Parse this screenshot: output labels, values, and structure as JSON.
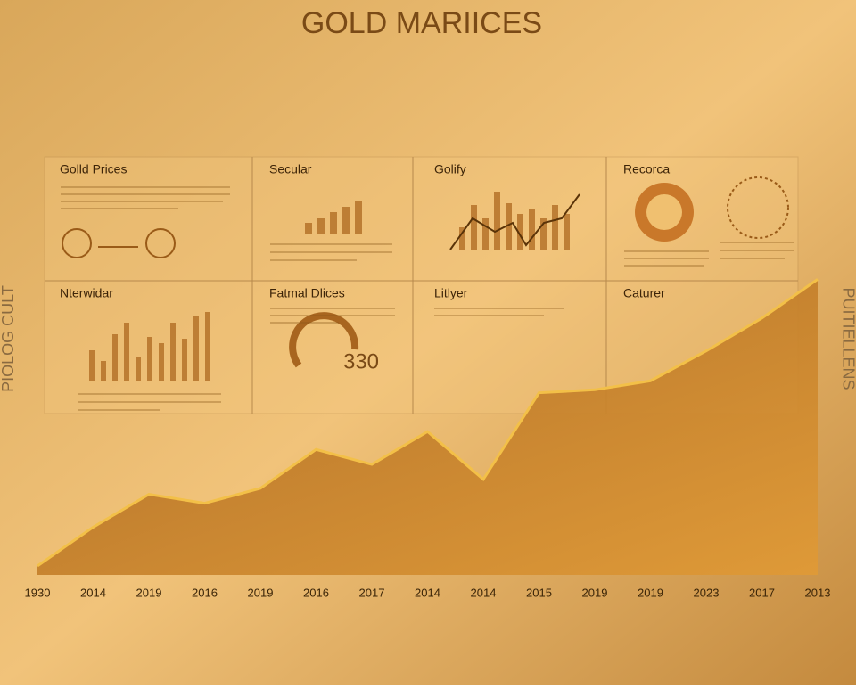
{
  "header": {
    "title": "GOLD MARIICES"
  },
  "panels": [
    {
      "title": "Golld Prices"
    },
    {
      "title": "Secular"
    },
    {
      "title": "Golify"
    },
    {
      "title": "Recorca"
    },
    {
      "title": "Nterwidar"
    },
    {
      "title": "Fatmal Dlices",
      "figure": "330"
    },
    {
      "title": "Litlyer"
    },
    {
      "title": "Caturer"
    }
  ],
  "side": {
    "left": "PIOLOG CULT",
    "right": "PUITIELLENS"
  },
  "chart_data": {
    "type": "area",
    "categories": [
      "1930",
      "2014",
      "2019",
      "2016",
      "2019",
      "2016",
      "2017",
      "2014",
      "2014",
      "2015",
      "2019",
      "2019",
      "2023",
      "2017",
      "2013"
    ],
    "values": [
      3,
      16,
      27,
      24,
      29,
      42,
      37,
      48,
      32,
      61,
      62,
      65,
      75,
      86,
      99
    ],
    "color": "#f3c048",
    "ylim": [
      0,
      100
    ]
  }
}
